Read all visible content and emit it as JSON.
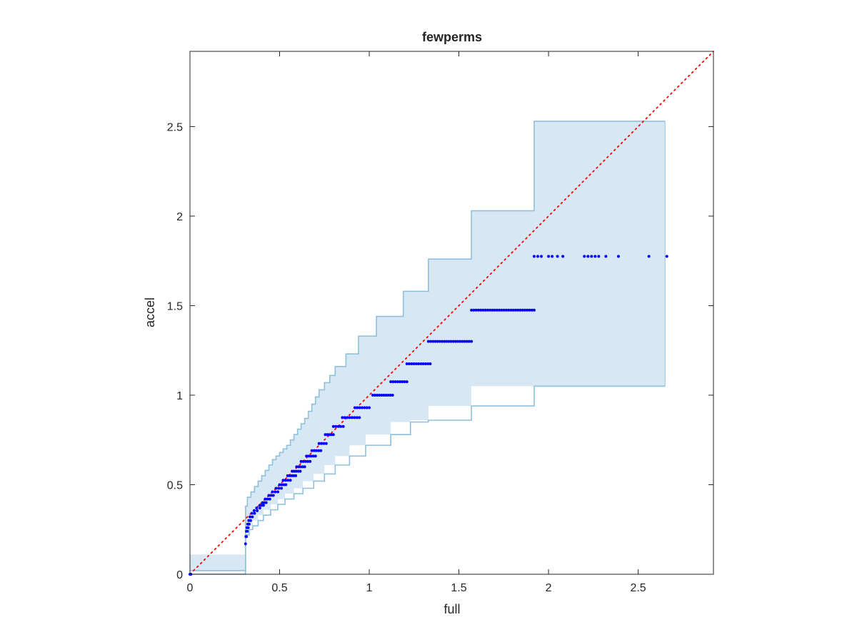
{
  "chart_data": {
    "type": "scatter",
    "title": "fewperms",
    "xlabel": "full",
    "ylabel": "accel",
    "xlim": [
      0,
      2.92
    ],
    "ylim": [
      0,
      2.92
    ],
    "xticks": [
      0,
      0.5,
      1,
      1.5,
      2,
      2.5
    ],
    "yticks": [
      0,
      0.5,
      1,
      1.5,
      2,
      2.5
    ],
    "xtick_labels": [
      "0",
      "0.5",
      "1",
      "1.5",
      "2",
      "2.5"
    ],
    "ytick_labels": [
      "0",
      "0.5",
      "1",
      "1.5",
      "2",
      "2.5"
    ],
    "grid": false,
    "box": true,
    "colors": {
      "points": "#0000ff",
      "band_fill": "#d7e7f3",
      "band_edge": "#8cc0dd",
      "reference_line": "#ff0000",
      "axes": "#262626"
    },
    "reference_line": {
      "style": "dotted",
      "from": [
        0,
        0
      ],
      "to": [
        2.92,
        2.92
      ]
    },
    "band": {
      "upper": [
        [
          0,
          0.02
        ],
        [
          0.31,
          0.3
        ],
        [
          0.31,
          0.38
        ],
        [
          0.32,
          0.43
        ],
        [
          0.34,
          0.46
        ],
        [
          0.36,
          0.49
        ],
        [
          0.38,
          0.52
        ],
        [
          0.4,
          0.55
        ],
        [
          0.42,
          0.58
        ],
        [
          0.44,
          0.61
        ],
        [
          0.46,
          0.64
        ],
        [
          0.48,
          0.66
        ],
        [
          0.5,
          0.68
        ],
        [
          0.52,
          0.7
        ],
        [
          0.54,
          0.72
        ],
        [
          0.56,
          0.75
        ],
        [
          0.58,
          0.78
        ],
        [
          0.6,
          0.81
        ],
        [
          0.62,
          0.84
        ],
        [
          0.64,
          0.87
        ],
        [
          0.66,
          0.91
        ],
        [
          0.68,
          0.95
        ],
        [
          0.7,
          0.99
        ],
        [
          0.72,
          1.03
        ],
        [
          0.75,
          1.07
        ],
        [
          0.78,
          1.11
        ],
        [
          0.81,
          1.16
        ],
        [
          0.87,
          1.23
        ],
        [
          0.94,
          1.33
        ],
        [
          1.04,
          1.44
        ],
        [
          1.19,
          1.58
        ],
        [
          1.33,
          1.76
        ],
        [
          1.57,
          2.03
        ],
        [
          1.92,
          2.53
        ],
        [
          2.65,
          2.53
        ]
      ],
      "lower": [
        [
          0,
          0.0
        ],
        [
          0.31,
          0.11
        ],
        [
          0.31,
          0.22
        ],
        [
          0.33,
          0.25
        ],
        [
          0.35,
          0.27
        ],
        [
          0.38,
          0.3
        ],
        [
          0.41,
          0.33
        ],
        [
          0.45,
          0.36
        ],
        [
          0.49,
          0.39
        ],
        [
          0.53,
          0.42
        ],
        [
          0.58,
          0.45
        ],
        [
          0.63,
          0.48
        ],
        [
          0.69,
          0.52
        ],
        [
          0.75,
          0.56
        ],
        [
          0.81,
          0.61
        ],
        [
          0.89,
          0.66
        ],
        [
          0.98,
          0.72
        ],
        [
          1.12,
          0.78
        ],
        [
          1.23,
          0.85
        ],
        [
          1.33,
          0.86
        ],
        [
          1.57,
          0.94
        ],
        [
          1.92,
          1.05
        ],
        [
          2.65,
          1.05
        ]
      ]
    },
    "levels": [
      {
        "y": 0.0,
        "x": [
          0.0,
          0.005
        ]
      },
      {
        "y": 0.17,
        "x": [
          0.31
        ]
      },
      {
        "y": 0.21,
        "x": [
          0.312,
          0.315
        ]
      },
      {
        "y": 0.24,
        "x": [
          0.315,
          0.32
        ]
      },
      {
        "y": 0.26,
        "x": [
          0.318,
          0.325
        ]
      },
      {
        "y": 0.28,
        "x": [
          0.322,
          0.33
        ]
      },
      {
        "y": 0.3,
        "x": [
          0.328,
          0.338
        ]
      },
      {
        "y": 0.32,
        "x": [
          0.335,
          0.348
        ]
      },
      {
        "y": 0.34,
        "x": [
          0.345,
          0.36
        ]
      },
      {
        "y": 0.355,
        "x": [
          0.358,
          0.375
        ]
      },
      {
        "y": 0.37,
        "x": [
          0.372,
          0.39
        ]
      },
      {
        "y": 0.385,
        "x": [
          0.39,
          0.41
        ]
      },
      {
        "y": 0.4,
        "x": [
          0.405,
          0.425
        ]
      },
      {
        "y": 0.42,
        "x": [
          0.42,
          0.445
        ]
      },
      {
        "y": 0.44,
        "x": [
          0.44,
          0.465
        ]
      },
      {
        "y": 0.46,
        "x": [
          0.46,
          0.49
        ]
      },
      {
        "y": 0.48,
        "x": [
          0.48,
          0.51
        ]
      },
      {
        "y": 0.5,
        "x": [
          0.5,
          0.535
        ]
      },
      {
        "y": 0.525,
        "x": [
          0.52,
          0.56
        ]
      },
      {
        "y": 0.55,
        "x": [
          0.545,
          0.59
        ]
      },
      {
        "y": 0.575,
        "x": [
          0.57,
          0.615
        ]
      },
      {
        "y": 0.6,
        "x": [
          0.595,
          0.64
        ]
      },
      {
        "y": 0.63,
        "x": [
          0.62,
          0.67
        ]
      },
      {
        "y": 0.66,
        "x": [
          0.65,
          0.7
        ]
      },
      {
        "y": 0.69,
        "x": [
          0.68,
          0.73
        ]
      },
      {
        "y": 0.73,
        "x": [
          0.72,
          0.76
        ]
      },
      {
        "y": 0.78,
        "x": [
          0.755,
          0.8
        ]
      },
      {
        "y": 0.825,
        "x": [
          0.8,
          0.855
        ]
      },
      {
        "y": 0.875,
        "x": [
          0.85,
          0.945
        ]
      },
      {
        "y": 0.93,
        "x": [
          0.92,
          1.0
        ]
      },
      {
        "y": 1.0,
        "x": [
          1.02,
          1.13
        ]
      },
      {
        "y": 1.075,
        "x": [
          1.12,
          1.21
        ]
      },
      {
        "y": 1.175,
        "x": [
          1.21,
          1.34
        ]
      },
      {
        "y": 1.3,
        "x": [
          1.33,
          1.57
        ]
      },
      {
        "y": 1.475,
        "x": [
          1.57,
          1.92
        ]
      },
      {
        "y": 1.775,
        "x": [
          1.92,
          2.08,
          2.2,
          2.39,
          2.56,
          2.66
        ]
      }
    ]
  }
}
